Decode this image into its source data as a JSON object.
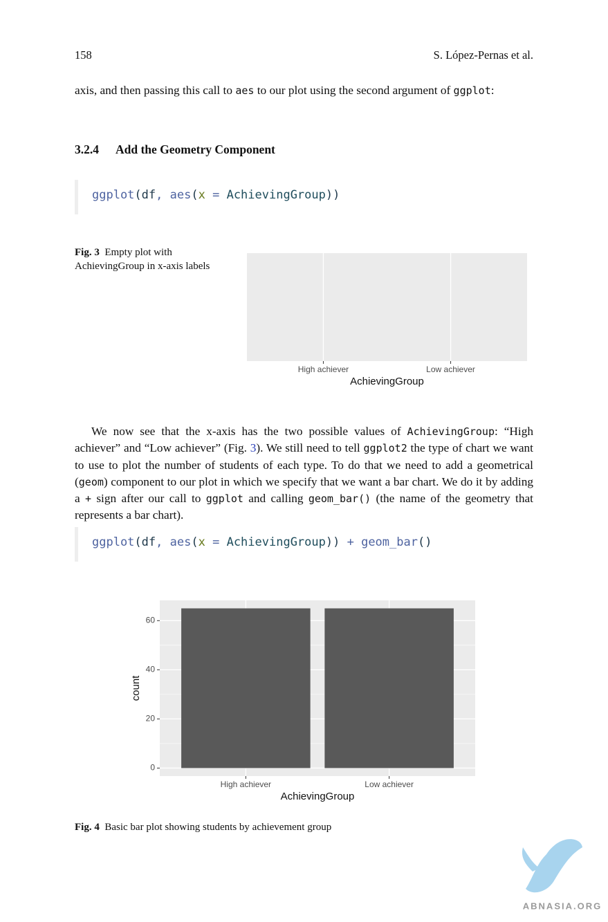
{
  "header": {
    "page_number": "158",
    "authors": "S. López-Pernas et al."
  },
  "paragraphs": [
    {
      "indent": false,
      "runs": [
        {
          "text": "axis, and then passing this call to "
        },
        {
          "text": "aes",
          "code": true
        },
        {
          "text": " to our plot using the second argument of "
        },
        {
          "text": "ggplot",
          "code": true
        },
        {
          "text": ":"
        }
      ]
    },
    {
      "indent": true,
      "runs": [
        {
          "text": "We now see that the x-axis has the two possible values of "
        },
        {
          "text": "AchievingGroup",
          "code": true
        },
        {
          "text": ": “High achiever” and “Low achiever” (Fig. "
        },
        {
          "text": "3",
          "link": true
        },
        {
          "text": "). We still need to tell "
        },
        {
          "text": "ggplot2",
          "code": true
        },
        {
          "text": " the type of chart we want to use to plot the number of students of each type. To do that we need to add a geometrical ("
        },
        {
          "text": "geom",
          "code": true
        },
        {
          "text": ") component to our plot in which we specify that we want a bar chart. We do it by adding a "
        },
        {
          "text": "+",
          "code": true
        },
        {
          "text": " sign after our call to "
        },
        {
          "text": "ggplot",
          "code": true
        },
        {
          "text": " and calling "
        },
        {
          "text": "geom_bar()",
          "code": true
        },
        {
          "text": " (the name of the geometry that represents a bar chart)."
        }
      ]
    }
  ],
  "section": {
    "number": "3.2.4",
    "title": "Add the Geometry Component"
  },
  "code_blocks": [
    [
      {
        "text": "ggplot",
        "color": "#4e63a0"
      },
      {
        "text": "(",
        "color": "#203a4c"
      },
      {
        "text": "df",
        "color": "#203a4c"
      },
      {
        "text": ", ",
        "color": "#4e63a0"
      },
      {
        "text": "aes",
        "color": "#4e63a0"
      },
      {
        "text": "(",
        "color": "#203a4c"
      },
      {
        "text": "x",
        "color": "#687a1e"
      },
      {
        "text": " = ",
        "color": "#4e63a0"
      },
      {
        "text": "AchievingGroup",
        "color": "#1f4d5c"
      },
      {
        "text": "))",
        "color": "#203a4c"
      }
    ],
    [
      {
        "text": "ggplot",
        "color": "#4e63a0"
      },
      {
        "text": "(",
        "color": "#203a4c"
      },
      {
        "text": "df",
        "color": "#203a4c"
      },
      {
        "text": ", ",
        "color": "#4e63a0"
      },
      {
        "text": "aes",
        "color": "#4e63a0"
      },
      {
        "text": "(",
        "color": "#203a4c"
      },
      {
        "text": "x",
        "color": "#687a1e"
      },
      {
        "text": " = ",
        "color": "#4e63a0"
      },
      {
        "text": "AchievingGroup",
        "color": "#1f4d5c"
      },
      {
        "text": "))",
        "color": "#203a4c"
      },
      {
        "text": " + ",
        "color": "#4e63a0"
      },
      {
        "text": "geom_bar",
        "color": "#4e63a0"
      },
      {
        "text": "()",
        "color": "#203a4c"
      }
    ]
  ],
  "figures": [
    {
      "label": "Fig. 3",
      "caption": "Empty plot with AchievingGroup in x-axis labels"
    },
    {
      "label": "Fig. 4",
      "caption": "Basic bar plot showing students by achievement group"
    }
  ],
  "chart_data": [
    {
      "type": "bar",
      "categories": [
        "High achiever",
        "Low achiever"
      ],
      "xlabel": "AchievingGroup",
      "grid": true,
      "panel_color": "#ebebeb"
    },
    {
      "type": "bar",
      "categories": [
        "High achiever",
        "Low achiever"
      ],
      "values": [
        65,
        65
      ],
      "color": "#595959",
      "ylim": [
        -3.25,
        68.25
      ],
      "yticks": [
        0,
        20,
        40,
        60
      ],
      "minor_yticks": [
        10,
        30,
        50
      ],
      "xlabel": "AchievingGroup",
      "ylabel": "count",
      "grid": true,
      "panel_color": "#ebebeb"
    }
  ],
  "watermark": "ABNASIA.ORG"
}
